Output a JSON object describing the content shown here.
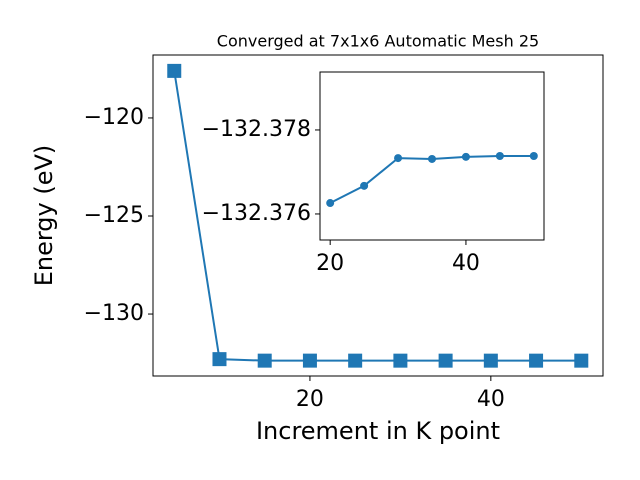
{
  "chart_data": [
    {
      "type": "line",
      "title": "Converged at 7x1x6 Automatic Mesh 25",
      "x_label": "Increment in K point",
      "y_label": "Energy (eV)",
      "x": [
        5,
        10,
        15,
        20,
        25,
        30,
        35,
        40,
        45,
        50
      ],
      "series": [
        {
          "color": "#1f77b4",
          "marker": "square",
          "values": [
            -117.6,
            -132.3,
            -132.377,
            -132.37626,
            -132.37667,
            -132.37733,
            -132.37731,
            -132.37736,
            -132.37738,
            -132.37738
          ]
        }
      ],
      "xlim": [
        2.65,
        52.4
      ],
      "ylim": [
        -133.16,
        -116.79
      ],
      "xticks": [
        20,
        40
      ],
      "yticks": [
        {
          "value": -120,
          "label": "−120"
        },
        {
          "value": -125,
          "label": "−125"
        },
        {
          "value": -130,
          "label": "−130"
        }
      ]
    },
    {
      "type": "line",
      "x": [
        20,
        25,
        30,
        35,
        40,
        45,
        50
      ],
      "series": [
        {
          "color": "#1f77b4",
          "marker": "circle",
          "values": [
            -132.37626,
            -132.37667,
            -132.37733,
            -132.37731,
            -132.37736,
            -132.37738,
            -132.37738
          ]
        }
      ],
      "xlim": [
        18.5,
        51.5
      ],
      "ylim": [
        -132.37538,
        -132.37938
      ],
      "xticks": [
        20,
        40
      ],
      "yticks": [
        {
          "value": -132.378,
          "label": "−132.378"
        },
        {
          "value": -132.376,
          "label": "−132.376"
        }
      ]
    }
  ]
}
